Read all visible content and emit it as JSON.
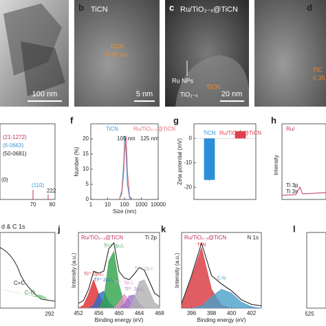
{
  "panels": {
    "a": {
      "scale_bar": "100 nm"
    },
    "b": {
      "label": "b",
      "title": "TiCN",
      "annotation": "TiCN",
      "spacing": "0.38 nm",
      "scale_bar": "5 nm"
    },
    "c": {
      "label": "c",
      "title": "Ru/TiO₂₋ₓ@TiCN",
      "annotations": [
        "Ru NPs",
        "TiO₂₋ₓ",
        "TiCN"
      ],
      "scale_bar": "20 nm"
    },
    "d": {
      "label": "d",
      "annotations": [
        "TiC",
        "0.35"
      ]
    },
    "e": {
      "texts": [
        "(21-1272)",
        "(6-0663)",
        "(50-0681)",
        "(0)",
        "(110)",
        "222",
        "70",
        "80"
      ]
    },
    "h": {
      "label": "h",
      "texts": [
        "Ru/",
        "Intensity",
        "Ti 3p",
        "Ti 3s"
      ]
    },
    "i": {
      "texts": [
        "d & C 1s",
        "C=C",
        "C-O",
        "292"
      ]
    },
    "l": {
      "label": "l",
      "texts": [
        "525"
      ]
    }
  },
  "chart_data": [
    {
      "type": "line",
      "label": "f",
      "xscale": "log",
      "x": [
        50,
        70,
        90,
        105,
        125,
        150,
        200,
        300
      ],
      "series": [
        {
          "name": "TiCN",
          "color": "#3a9ad9",
          "values": [
            0,
            3,
            12,
            21,
            15,
            5,
            0.5,
            0
          ]
        },
        {
          "name": "Ru/TiO₂₋ₓ@TiCN",
          "color": "#e0707a",
          "values": [
            0,
            2,
            9,
            18,
            21,
            9,
            1,
            0
          ]
        }
      ],
      "annotations": [
        "105 nm",
        "125 nm"
      ],
      "xlim": [
        1,
        10000
      ],
      "xticks": [
        1,
        10,
        100,
        1000,
        10000
      ],
      "ylim": [
        0,
        25
      ],
      "yticks": [
        0,
        5,
        10,
        15,
        20
      ],
      "xlabel": "Size (nm)",
      "ylabel": "Number (%)"
    },
    {
      "type": "bar",
      "label": "g",
      "categories": [
        "TiCN",
        "Ru/TiO₂₋ₓ@TiCN"
      ],
      "values": [
        -17,
        3
      ],
      "errors": [
        0.3,
        0.4
      ],
      "colors": [
        "#2a8fd8",
        "#e04050"
      ],
      "ylim": [
        -25,
        6
      ],
      "yticks": [
        -20,
        -10,
        0
      ],
      "ylabel": "Zeta potential (mV)"
    },
    {
      "type": "area",
      "label": "j",
      "sample": "Ru/TiO₂₋ₓ@TiCN",
      "region": "Ti 2p",
      "x": [
        452,
        453,
        454,
        455,
        456,
        457,
        458,
        459,
        460,
        461,
        462,
        463,
        464,
        465,
        466,
        467,
        468
      ],
      "series": [
        {
          "name": "Ti²⁺ 2p₃/₂",
          "color": "#e0282c",
          "fill": true,
          "values": [
            0,
            0.3,
            1.5,
            3,
            1.5,
            0.3,
            0,
            0,
            0,
            0,
            0,
            0,
            0,
            0,
            0,
            0,
            0
          ]
        },
        {
          "name": "Ti³⁺ 2p₃/₂",
          "color": "#2b6cc4",
          "fill": true,
          "values": [
            0,
            0,
            0,
            0.3,
            1.5,
            1.8,
            0.6,
            0.1,
            0,
            0,
            0,
            0,
            0,
            0,
            0,
            0,
            0
          ]
        },
        {
          "name": "Ti⁴⁺ 2p₃/₂",
          "color": "#2ea24a",
          "fill": true,
          "values": [
            0,
            0,
            0,
            0,
            0,
            1,
            5,
            6,
            2.5,
            0.5,
            0,
            0,
            0,
            0,
            0,
            0,
            0
          ]
        },
        {
          "name": "Ti²⁺ 2p₁/₂",
          "color": "#e890c8",
          "fill": true,
          "values": [
            0,
            0,
            0,
            0,
            0,
            0,
            0,
            0,
            0.6,
            1.5,
            0.8,
            0.2,
            0,
            0,
            0,
            0,
            0
          ]
        },
        {
          "name": "Ti³⁺ 2p₁/₂",
          "color": "#a070c8",
          "fill": true,
          "values": [
            0,
            0,
            0,
            0,
            0,
            0,
            0,
            0,
            0,
            0.4,
            1.3,
            1.4,
            0.5,
            0,
            0,
            0,
            0
          ]
        },
        {
          "name": "Ti⁴⁺ 2p₁/₂",
          "color": "#b0b0b0",
          "fill": true,
          "values": [
            0,
            0,
            0,
            0,
            0,
            0,
            0,
            0,
            0,
            0,
            0,
            1,
            2.8,
            3,
            1.8,
            0.6,
            0.2
          ]
        },
        {
          "color": "#111111",
          "fill": false,
          "values": [
            0.5,
            0.8,
            2.0,
            3.9,
            3.7,
            3.9,
            6.3,
            6.9,
            3.9,
            3.2,
            3.0,
            3.6,
            4.3,
            4.0,
            2.8,
            1.6,
            1.2
          ]
        }
      ],
      "xlim": [
        452,
        468
      ],
      "xticks": [
        452,
        456,
        460,
        464,
        468
      ],
      "ylim": [
        0,
        8
      ],
      "xlabel": "Binding energy (eV)",
      "ylabel": "Intensity (a.u.)"
    },
    {
      "type": "area",
      "label": "k",
      "sample": "Ru/TiO₂₋ₓ@TiCN",
      "region": "N 1s",
      "x": [
        395,
        396,
        397,
        398,
        399,
        400,
        401,
        402,
        403
      ],
      "series": [
        {
          "name": "Ti-N",
          "color": "#d8343c",
          "fill": true,
          "values": [
            0.3,
            4,
            8,
            2.5,
            0.4,
            0,
            0,
            0,
            0
          ]
        },
        {
          "name": "C-N",
          "color": "#4aa0c8",
          "fill": true,
          "values": [
            0,
            0,
            0.3,
            1.5,
            2.5,
            2,
            0.8,
            0.2,
            0
          ]
        },
        {
          "color": "#111111",
          "fill": false,
          "values": [
            0.6,
            4.3,
            8.6,
            4.3,
            3.2,
            2.3,
            1.1,
            0.5,
            0.3
          ]
        }
      ],
      "xlim": [
        395,
        403
      ],
      "xticks": [
        396,
        398,
        400,
        402
      ],
      "ylim": [
        0,
        10
      ],
      "xlabel": "Binding energy (eV)",
      "ylabel": "Intensity (a.u.)"
    }
  ]
}
